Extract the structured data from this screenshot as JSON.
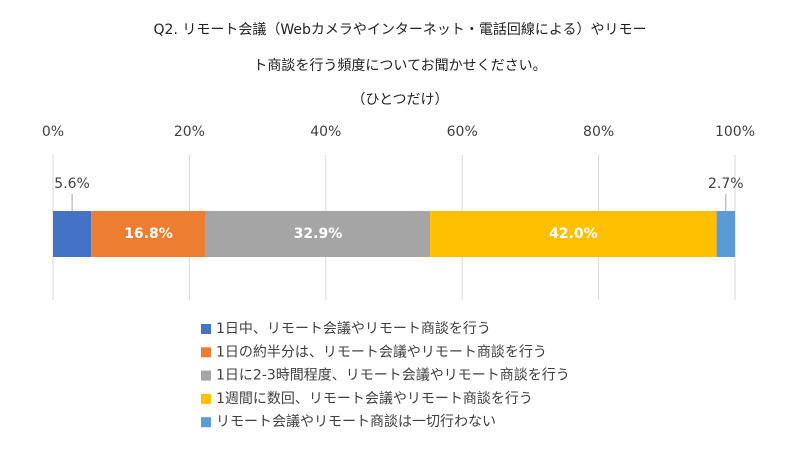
{
  "chart_data": {
    "type": "stacked-bar-horizontal",
    "title": [
      "Q2. リモート会議（Webカメラやインターネット・電話回線による）やリモー",
      "ト商談を行う頻度についてお聞かせください。"
    ],
    "subtitle": "（ひとつだけ）",
    "xlim": [
      0,
      100
    ],
    "xticks": [
      {
        "value": 0,
        "label": "0%"
      },
      {
        "value": 20,
        "label": "20%"
      },
      {
        "value": 40,
        "label": "40%"
      },
      {
        "value": 60,
        "label": "60%"
      },
      {
        "value": 80,
        "label": "80%"
      },
      {
        "value": 100,
        "label": "100%"
      }
    ],
    "grid": true,
    "legend": "bottom",
    "series": [
      {
        "name": "1日中、リモート会議やリモート商談を行う",
        "color": "#4472c4",
        "values": [
          5.6
        ],
        "value_labels": [
          "5.6%"
        ]
      },
      {
        "name": "1日の約半分は、リモート会議やリモート商談を行う",
        "color": "#ed7d31",
        "values": [
          16.8
        ],
        "value_labels": [
          "16.8%"
        ]
      },
      {
        "name": "1日に2-3時間程度、リモート会議やリモート商談を行う",
        "color": "#a5a5a5",
        "values": [
          32.9
        ],
        "value_labels": [
          "32.9%"
        ]
      },
      {
        "name": "1週間に数回、リモート会議やリモート商談を行う",
        "color": "#ffc000",
        "values": [
          42.0
        ],
        "value_labels": [
          "42.0%"
        ]
      },
      {
        "name": "リモート会議やリモート商談は一切行わない",
        "color": "#5b9bd5",
        "values": [
          2.7
        ],
        "value_labels": [
          "2.7%"
        ]
      }
    ]
  }
}
